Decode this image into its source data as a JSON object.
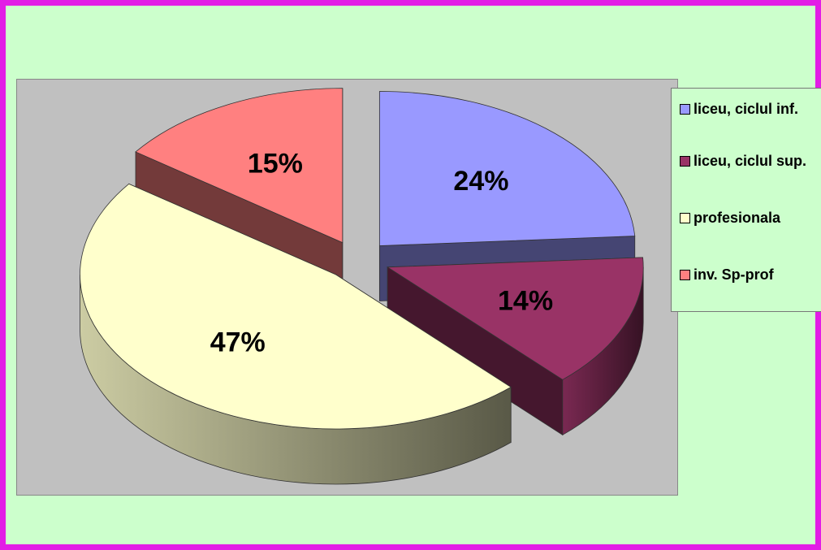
{
  "chart_data": {
    "type": "pie",
    "categories": [
      "liceu, ciclul inf.",
      "liceu, ciclul sup.",
      "profesionala",
      "inv. Sp-prof"
    ],
    "values": [
      24,
      14,
      47,
      15
    ],
    "value_labels": [
      "24%",
      "14%",
      "47%",
      "15%"
    ],
    "colors": [
      "#9999ff",
      "#993366",
      "#ffffcc",
      "#ff8080"
    ],
    "exploded": true,
    "three_d": true,
    "legend_position": "right"
  },
  "legend": {
    "items": [
      {
        "label": "liceu, ciclul inf.",
        "color": "#9999ff"
      },
      {
        "label": "liceu, ciclul sup.",
        "color": "#993366"
      },
      {
        "label": "profesionala",
        "color": "#ffffcc"
      },
      {
        "label": "inv. Sp-prof",
        "color": "#ff8080"
      }
    ]
  },
  "colors": {
    "frame_border": "#e21de6",
    "background": "#ccffcc",
    "plot_area": "#c0c0c0"
  }
}
